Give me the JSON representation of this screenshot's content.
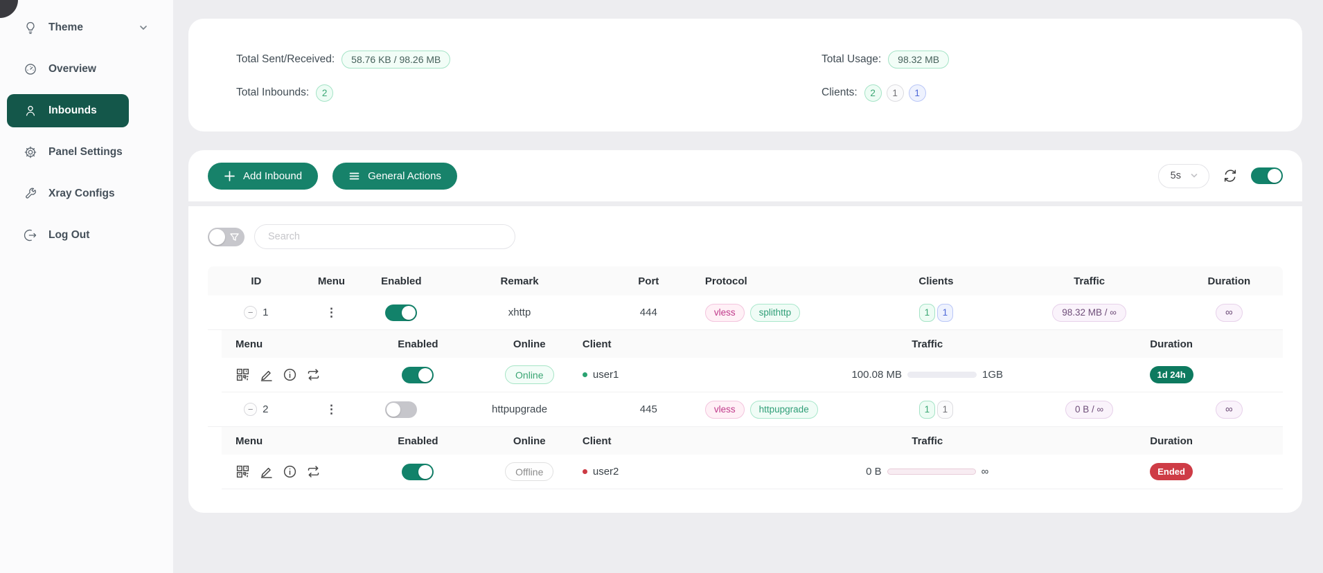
{
  "sidebar": {
    "items": [
      {
        "label": "Theme",
        "icon": "bulb-icon",
        "has_chevron": true
      },
      {
        "label": "Overview",
        "icon": "dashboard-icon"
      },
      {
        "label": "Inbounds",
        "icon": "user-icon",
        "active": true
      },
      {
        "label": "Panel Settings",
        "icon": "gear-icon"
      },
      {
        "label": "Xray Configs",
        "icon": "wrench-icon"
      },
      {
        "label": "Log Out",
        "icon": "logout-icon"
      }
    ]
  },
  "stats": {
    "total_sent_received_label": "Total Sent/Received:",
    "total_sent_received_value": "58.76 KB / 98.26 MB",
    "total_inbounds_label": "Total Inbounds:",
    "total_inbounds_value": "2",
    "total_usage_label": "Total Usage:",
    "total_usage_value": "98.32 MB",
    "clients_label": "Clients:",
    "clients_counts": [
      {
        "value": "2",
        "variant": "green"
      },
      {
        "value": "1",
        "variant": "gray"
      },
      {
        "value": "1",
        "variant": "blue"
      }
    ]
  },
  "toolbar": {
    "add_inbound_label": "Add Inbound",
    "general_actions_label": "General Actions",
    "refresh_interval": "5s",
    "auto_refresh_enabled": true
  },
  "search": {
    "placeholder": "Search",
    "filter_enabled": false
  },
  "table": {
    "columns": [
      "ID",
      "Menu",
      "Enabled",
      "Remark",
      "Port",
      "Protocol",
      "Clients",
      "Traffic",
      "Duration"
    ],
    "sub_columns": [
      "Menu",
      "Enabled",
      "Online",
      "Client",
      "Traffic",
      "Duration"
    ],
    "inbounds": [
      {
        "id": "1",
        "enabled": true,
        "remark": "xhttp",
        "port": "444",
        "protocols": [
          {
            "label": "vless",
            "variant": "magenta"
          },
          {
            "label": "splithttp",
            "variant": "green"
          }
        ],
        "client_counts": [
          {
            "value": "1",
            "variant": "green"
          },
          {
            "value": "1",
            "variant": "blue"
          }
        ],
        "traffic": "98.32 MB / ∞",
        "duration": "∞",
        "clients_rows": [
          {
            "enabled": true,
            "online_label": "Online",
            "online": true,
            "client": "user1",
            "used": "100.08 MB",
            "quota": "1GB",
            "progress": 12,
            "duration": "1d 24h",
            "duration_variant": "green"
          }
        ]
      },
      {
        "id": "2",
        "enabled": false,
        "remark": "httpupgrade",
        "port": "445",
        "protocols": [
          {
            "label": "vless",
            "variant": "magenta"
          },
          {
            "label": "httpupgrade",
            "variant": "green"
          }
        ],
        "client_counts": [
          {
            "value": "1",
            "variant": "green"
          },
          {
            "value": "1",
            "variant": "gray"
          }
        ],
        "traffic": "0 B / ∞",
        "duration": "∞",
        "clients_rows": [
          {
            "enabled": true,
            "online_label": "Offline",
            "online": false,
            "client": "user2",
            "used": "0 B",
            "quota": "∞",
            "progress": 0,
            "duration": "Ended",
            "duration_variant": "red"
          }
        ]
      }
    ]
  },
  "colors": {
    "accent_teal": "#17826a",
    "sidebar_active": "#14574a",
    "duration_green": "#0d7a5f",
    "duration_red": "#ce3c46",
    "tag_magenta_text": "#c0398a",
    "tag_green_text": "#2f9e77",
    "traffic_pill_text": "#6e4d78",
    "page_background": "#ededf0"
  }
}
